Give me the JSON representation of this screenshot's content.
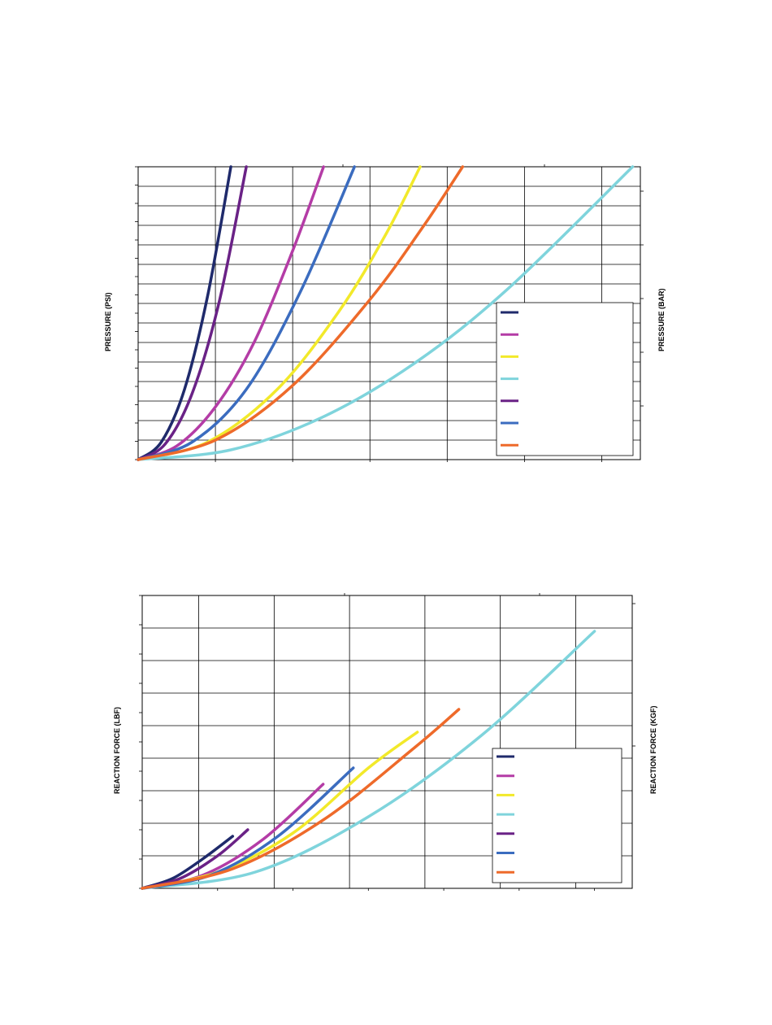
{
  "chart_data": [
    {
      "type": "line",
      "title": "",
      "xlabel": "",
      "ylabel": "PRESSURE (PSI)",
      "y2label": "PRESSURE (BAR)",
      "xlim": [
        0,
        6.5
      ],
      "ylim": [
        0,
        15
      ],
      "x_gridlines": [
        1,
        2,
        3,
        4,
        5,
        6
      ],
      "y_gridlines": [
        1,
        2,
        3,
        4,
        5,
        6,
        7,
        8,
        9,
        10,
        11,
        12,
        13,
        14
      ],
      "grid": true,
      "legend_position": "bottom-right",
      "series": [
        {
          "color": "#1f2a6b",
          "x": [
            0,
            0.3,
            0.6,
            0.9,
            1.2
          ],
          "y": [
            0,
            0.9,
            3.6,
            8.4,
            15
          ]
        },
        {
          "color": "#b43ca6",
          "x": [
            0,
            0.5,
            1.0,
            1.5,
            2.0,
            2.4
          ],
          "y": [
            0,
            0.7,
            2.7,
            6.0,
            10.7,
            15
          ]
        },
        {
          "color": "#f2e92a",
          "x": [
            0,
            0.9,
            1.8,
            2.6,
            3.2,
            3.65
          ],
          "y": [
            0,
            0.9,
            3.6,
            7.6,
            11.5,
            15
          ]
        },
        {
          "color": "#7fd4dc",
          "x": [
            0,
            1.2,
            2.4,
            3.6,
            4.8,
            6.4
          ],
          "y": [
            0,
            0.5,
            2.2,
            5.0,
            8.8,
            15
          ]
        },
        {
          "color": "#6a2286",
          "x": [
            0,
            0.35,
            0.7,
            1.05,
            1.4
          ],
          "y": [
            0,
            0.8,
            3.4,
            8.1,
            15
          ]
        },
        {
          "color": "#3b6cbf",
          "x": [
            0,
            0.7,
            1.4,
            2.1,
            2.8
          ],
          "y": [
            0,
            0.9,
            3.6,
            8.6,
            15
          ]
        },
        {
          "color": "#ee6a2a",
          "x": [
            0,
            1.0,
            2.0,
            3.0,
            3.7,
            4.2
          ],
          "y": [
            0,
            1.0,
            3.8,
            8.2,
            12.0,
            15
          ]
        }
      ]
    },
    {
      "type": "line",
      "title": "",
      "xlabel": "",
      "ylabel": "REACTION FORCE (LBF)",
      "y2label": "REACTION FORCE (KGF)",
      "xlim": [
        0,
        6.5
      ],
      "ylim": [
        0,
        9
      ],
      "x_gridlines": [
        0.75,
        1.75,
        2.75,
        3.75,
        4.75,
        5.75
      ],
      "y_gridlines": [
        1,
        2,
        3,
        4,
        5,
        6,
        7,
        8
      ],
      "grid": true,
      "legend_position": "bottom-right",
      "series": [
        {
          "color": "#1f2a6b",
          "x": [
            0,
            0.4,
            0.8,
            1.2
          ],
          "y": [
            0,
            0.3,
            0.9,
            1.6
          ]
        },
        {
          "color": "#b43ca6",
          "x": [
            0,
            0.8,
            1.6,
            2.4
          ],
          "y": [
            0,
            0.4,
            1.5,
            3.2
          ]
        },
        {
          "color": "#f2e92a",
          "x": [
            0,
            1.0,
            2.0,
            3.0,
            3.65
          ],
          "y": [
            0,
            0.5,
            1.7,
            3.7,
            4.8
          ]
        },
        {
          "color": "#7fd4dc",
          "x": [
            0,
            1.5,
            3.0,
            4.5,
            6.0
          ],
          "y": [
            0,
            0.5,
            2.2,
            4.7,
            7.9
          ]
        },
        {
          "color": "#6a2286",
          "x": [
            0,
            0.5,
            1.0,
            1.4
          ],
          "y": [
            0,
            0.3,
            1.0,
            1.8
          ]
        },
        {
          "color": "#3b6cbf",
          "x": [
            0,
            0.9,
            1.8,
            2.8
          ],
          "y": [
            0,
            0.4,
            1.6,
            3.7
          ]
        },
        {
          "color": "#ee6a2a",
          "x": [
            0,
            1.2,
            2.4,
            3.6,
            4.2
          ],
          "y": [
            0,
            0.6,
            2.1,
            4.3,
            5.5
          ]
        }
      ]
    }
  ]
}
